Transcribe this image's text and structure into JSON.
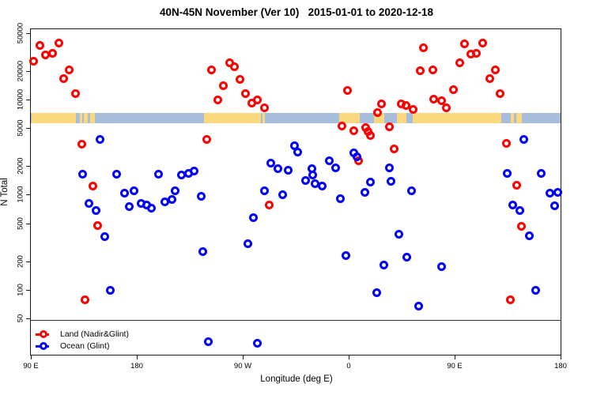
{
  "title": "40N-45N November (Ver 10)   2015-01-01 to 2020-12-18",
  "axes": {
    "x": {
      "label": "Longitude (deg E)",
      "tick_labels": [
        "90 E",
        "180",
        "90 W",
        "0",
        "90 E",
        "180"
      ],
      "tick_positions_deg": [
        90,
        180,
        270,
        360,
        450,
        540
      ]
    },
    "y": {
      "label": "N Total",
      "scale": "log",
      "tick_labels": [
        "50000",
        "20000",
        "10000",
        "5000",
        "2000",
        "1000",
        "500",
        "200",
        "100",
        "50"
      ],
      "tick_values": [
        50000,
        20000,
        10000,
        5000,
        2000,
        1000,
        500,
        200,
        100,
        50
      ]
    }
  },
  "legend": {
    "items": [
      {
        "label": "Land (Nadir&Glint)",
        "color": "#ff0000"
      },
      {
        "label": "Ocean (Glint)",
        "color": "#0000ff"
      }
    ],
    "position": "bottom-left"
  },
  "map_strip": {
    "ocean_color": "#a6bedb",
    "land_color": "#fbd77e",
    "N_range": [
      5600,
      7500
    ],
    "land_segments_deg": [
      [
        90,
        127.5
      ],
      [
        131,
        133
      ],
      [
        134.5,
        137.5
      ],
      [
        139.5,
        143.5
      ],
      [
        236.4,
        284.5
      ],
      [
        286,
        288
      ],
      [
        351.3,
        369
      ],
      [
        381,
        389.5
      ],
      [
        400.5,
        408.5
      ],
      [
        414,
        489
      ],
      [
        497,
        500
      ],
      [
        501.5,
        506.5
      ]
    ]
  },
  "chart_data": {
    "type": "scatter",
    "title": "40N-45N November (Ver 10)   2015-01-01 to 2020-12-18",
    "xlabel": "Longitude (deg E)",
    "ylabel": "N Total",
    "x_range_deg": [
      89,
      541
    ],
    "y_log_range": [
      20,
      56000
    ],
    "grid": false,
    "legend_position": "bottom-left",
    "series": [
      {
        "name": "Land (Nadir&Glint)",
        "color": "#ff0000",
        "points": [
          [
            97,
            38000
          ],
          [
            113,
            40000
          ],
          [
            102,
            30000
          ],
          [
            108,
            31500
          ],
          [
            92,
            26000
          ],
          [
            122,
            21000
          ],
          [
            117,
            17000
          ],
          [
            127,
            11700
          ],
          [
            132.5,
            3450
          ],
          [
            142,
            1260
          ],
          [
            146,
            480
          ],
          [
            135,
            80
          ],
          [
            258,
            25000
          ],
          [
            262,
            22500
          ],
          [
            243,
            21000
          ],
          [
            267,
            16500
          ],
          [
            253,
            14200
          ],
          [
            272,
            11900
          ],
          [
            248,
            10200
          ],
          [
            277,
            9300
          ],
          [
            282,
            10200
          ],
          [
            287.5,
            8400
          ],
          [
            239,
            3850
          ],
          [
            292,
            800
          ],
          [
            423,
            36000
          ],
          [
            420,
            20500
          ],
          [
            431,
            21000
          ],
          [
            358,
            12700
          ],
          [
            387,
            9200
          ],
          [
            404,
            9200
          ],
          [
            408,
            8800
          ],
          [
            414,
            8100
          ],
          [
            431.5,
            10400
          ],
          [
            384,
            7400
          ],
          [
            353.5,
            5400
          ],
          [
            364,
            4800
          ],
          [
            374,
            5200
          ],
          [
            376,
            4700
          ],
          [
            378,
            4300
          ],
          [
            394,
            5300
          ],
          [
            398,
            3070
          ],
          [
            368,
            2320
          ],
          [
            458,
            39000
          ],
          [
            473,
            40000
          ],
          [
            463,
            30500
          ],
          [
            468,
            31500
          ],
          [
            454,
            25000
          ],
          [
            484,
            21000
          ],
          [
            479,
            17000
          ],
          [
            448,
            12900
          ],
          [
            488,
            11700
          ],
          [
            438,
            9900
          ],
          [
            442,
            8400
          ],
          [
            493,
            3500
          ],
          [
            502,
            1290
          ],
          [
            506,
            475
          ],
          [
            497,
            80
          ]
        ]
      },
      {
        "name": "Ocean (Glint)",
        "color": "#0000ff",
        "points": [
          [
            148,
            3850
          ],
          [
            133.5,
            1670
          ],
          [
            162.5,
            1670
          ],
          [
            198,
            1670
          ],
          [
            313,
            3320
          ],
          [
            316,
            2860
          ],
          [
            293,
            2200
          ],
          [
            299,
            1900
          ],
          [
            308,
            1850
          ],
          [
            228,
            1800
          ],
          [
            223,
            1700
          ],
          [
            217,
            1650
          ],
          [
            364,
            2800
          ],
          [
            366.5,
            2550
          ],
          [
            343,
            2300
          ],
          [
            348,
            1970
          ],
          [
            328,
            1930
          ],
          [
            328.5,
            1650
          ],
          [
            323,
            1430
          ],
          [
            331,
            1340
          ],
          [
            337,
            1260
          ],
          [
            394,
            1970
          ],
          [
            395,
            1400
          ],
          [
            378,
            1390
          ],
          [
            508,
            3900
          ],
          [
            494,
            1700
          ],
          [
            523,
            1700
          ],
          [
            139,
            820
          ],
          [
            145,
            700
          ],
          [
            169,
            1060
          ],
          [
            177,
            1130
          ],
          [
            173,
            770
          ],
          [
            183,
            820
          ],
          [
            188,
            790
          ],
          [
            192,
            740
          ],
          [
            152,
            370
          ],
          [
            157,
            100
          ],
          [
            203,
            865
          ],
          [
            209,
            900
          ],
          [
            212,
            1130
          ],
          [
            234,
            975
          ],
          [
            288,
            1130
          ],
          [
            303,
            1010
          ],
          [
            278.5,
            590
          ],
          [
            274,
            313
          ],
          [
            235.5,
            255
          ],
          [
            240,
            29
          ],
          [
            282,
            28
          ],
          [
            352,
            930
          ],
          [
            373,
            1070
          ],
          [
            413,
            1110
          ],
          [
            402,
            394
          ],
          [
            357,
            232
          ],
          [
            389,
            186
          ],
          [
            409,
            225
          ],
          [
            383,
            95
          ],
          [
            419,
            68
          ],
          [
            530,
            1060
          ],
          [
            537,
            1080
          ],
          [
            534,
            780
          ],
          [
            499,
            795
          ],
          [
            505,
            690
          ],
          [
            513,
            374
          ],
          [
            438,
            180
          ],
          [
            518,
            100
          ]
        ]
      }
    ]
  }
}
